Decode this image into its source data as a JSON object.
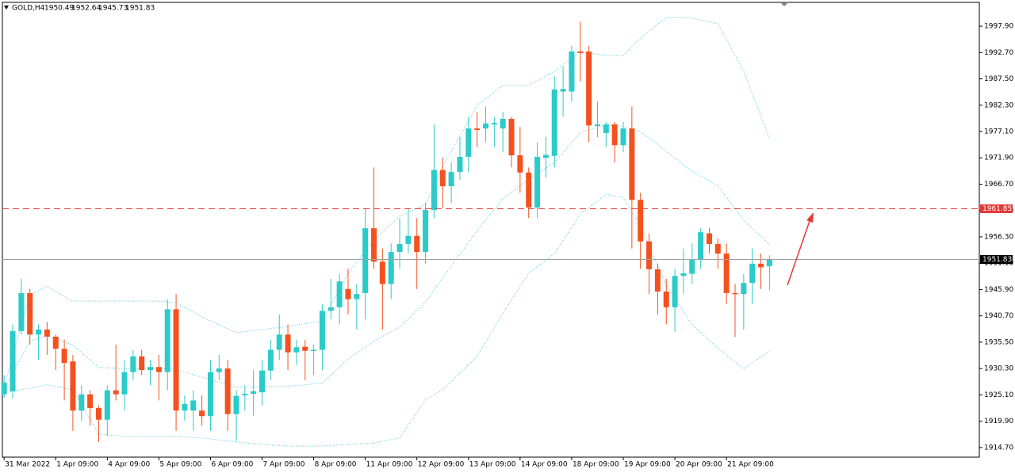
{
  "chart_data": {
    "type": "candlestick",
    "symbol": "GOLD,H4",
    "last_ohlc": [
      1950.49,
      1952.64,
      1945.73,
      1951.83
    ],
    "open": [
      1925.2,
      1925.8,
      1937.7,
      1945.2,
      1937,
      1938,
      1936.6,
      1934.2,
      1931.7,
      1922,
      1925.2,
      1922.5,
      1920.2,
      1926,
      1925.2,
      1929.6,
      1932.7,
      1930,
      1930.6,
      1929.6,
      1942,
      1922,
      1922,
      1922,
      1920.9,
      1929.6,
      1930.3,
      1921.3,
      1925,
      1925.3,
      1925.6,
      1929.9,
      1934,
      1937,
      1933.5,
      1934.6,
      1933.8,
      1934,
      1941.7,
      1942.4,
      1946,
      1944,
      1945.2,
      1958,
      1951.4,
      1947,
      1953.3,
      1954.9,
      1956.5,
      1953.3,
      1961.6,
      1969.5,
      1966.3,
      1969.1,
      1972.1,
      1977.7,
      1977.7,
      1978.5,
      1977.7,
      1979.6,
      1972.4,
      1969,
      1962.1,
      1971.9,
      1972.3,
      1985,
      1985,
      1992.9,
      1992.9,
      1978.2,
      1976.8,
      1978.5,
      1974.4,
      1977.7,
      1963.6,
      1955.4,
      1949.9,
      1945.5,
      1942.4,
      1948.6,
      1949,
      1951.9,
      1957,
      1954.9,
      1953,
      1945.2,
      1945,
      1947.2,
      1951,
      1950.49
    ],
    "high": [
      1929,
      1939,
      1948,
      1946,
      1939,
      1939.5,
      1937,
      1936,
      1933,
      1927,
      1926,
      1923,
      1927,
      1935,
      1932,
      1934,
      1934,
      1932,
      1933,
      1944,
      1945,
      1925,
      1926,
      1925,
      1932,
      1933,
      1932,
      1926,
      1927,
      1930,
      1932,
      1936,
      1941,
      1939,
      1936,
      1936,
      1935,
      1943,
      1948,
      1949,
      1950,
      1947,
      1962,
      1970,
      1954,
      1955,
      1960,
      1962,
      1960,
      1963,
      1978.5,
      1972,
      1971,
      1976,
      1980,
      1981,
      1982,
      1980,
      1981,
      1980,
      1978,
      1970,
      1975,
      1976,
      1988,
      1990,
      1994,
      1998.8,
      1994,
      1983,
      1979,
      1979,
      1979,
      1982,
      1965,
      1957,
      1951,
      1948,
      1950,
      1954,
      1955,
      1958,
      1958,
      1956,
      1955,
      1947,
      1949,
      1954,
      1953,
      1952.64
    ],
    "low": [
      1924.5,
      1924.5,
      1937,
      1935,
      1932,
      1933,
      1930,
      1924,
      1918,
      1920,
      1919,
      1915.8,
      1917,
      1924,
      1922,
      1928,
      1929,
      1927,
      1924,
      1926,
      1918,
      1920,
      1918,
      1919,
      1918,
      1928,
      1918,
      1916,
      1922,
      1921,
      1923,
      1928,
      1932,
      1930,
      1931,
      1928,
      1929,
      1930,
      1940,
      1939,
      1941,
      1938,
      1940,
      1950,
      1938,
      1944,
      1950,
      1953,
      1946,
      1951,
      1960,
      1962,
      1963,
      1967.5,
      1969,
      1974,
      1975,
      1974,
      1973,
      1970,
      1965,
      1960,
      1960,
      1968,
      1970,
      1980,
      1983,
      1987,
      1975,
      1976,
      1974,
      1971,
      1973,
      1954,
      1950,
      1945,
      1941,
      1939,
      1937.5,
      1945,
      1947,
      1950,
      1953,
      1950,
      1943,
      1936.5,
      1938,
      1943,
      1946,
      1945.73
    ],
    "close": [
      1927.5,
      1937.7,
      1945.2,
      1937,
      1938,
      1936.6,
      1934.2,
      1931.4,
      1922,
      1925.2,
      1922.5,
      1920.2,
      1926,
      1925.2,
      1929.6,
      1932.7,
      1930,
      1930.6,
      1929.6,
      1942,
      1922,
      1923.3,
      1924,
      1920.9,
      1929.6,
      1930.3,
      1921.3,
      1924.9,
      1925.3,
      1925.8,
      1929.9,
      1934,
      1937,
      1933.5,
      1934.5,
      1933.8,
      1934,
      1941.7,
      1942.4,
      1947.5,
      1944,
      1945,
      1958,
      1951.4,
      1947,
      1953.3,
      1954.9,
      1956.5,
      1953.3,
      1961.6,
      1969.5,
      1966.3,
      1969.1,
      1972.1,
      1977.7,
      1977.4,
      1978.7,
      1978.8,
      1979.6,
      1972.4,
      1969,
      1962.1,
      1972.1,
      1972.5,
      1985.4,
      1985.5,
      1992.9,
      1992.6,
      1978.3,
      1978.5,
      1978.5,
      1974.4,
      1977.7,
      1963.6,
      1955.4,
      1949.9,
      1945.5,
      1942.4,
      1948.6,
      1949.1,
      1951.9,
      1957.2,
      1954.9,
      1953,
      1945.2,
      1945,
      1947.2,
      1951,
      1950.3,
      1951.83
    ],
    "up_color": "#2bcbc9",
    "down_color": "#f4511e",
    "bands": [
      {
        "color": "#4fc3d8",
        "x": [
          0,
          3,
          5,
          8,
          11,
          14,
          18,
          20,
          23,
          27,
          30,
          33,
          37,
          40,
          43,
          46,
          49,
          51,
          55,
          58,
          61,
          64,
          67,
          70,
          72,
          74,
          77,
          80,
          83,
          86,
          89
        ],
        "values": [
          1926.7,
          1944.9,
          1946.5,
          1943.6,
          1943.6,
          1943.6,
          1943.6,
          1943.3,
          1940.5,
          1937.4,
          1938,
          1938.6,
          1939.7,
          1949.1,
          1955.7,
          1960.4,
          1962.7,
          1970.2,
          1982.3,
          1986.2,
          1986.2,
          1989,
          1992.9,
          1992.1,
          1992.1,
          1995.6,
          1999.6,
          1999.5,
          1998.4,
          1989,
          1975.7
        ]
      },
      {
        "color": "#4fc3d8",
        "x": [
          0,
          3,
          5,
          8,
          11,
          14,
          18,
          20,
          23,
          27,
          30,
          33,
          37,
          40,
          43,
          46,
          49,
          51,
          55,
          58,
          61,
          64,
          67,
          70,
          72,
          74,
          77,
          80,
          83,
          86,
          89
        ],
        "values": [
          1926.2,
          1935.7,
          1936.8,
          1934.9,
          1930.5,
          1930.3,
          1930.3,
          1930.1,
          1928.6,
          1926.6,
          1926.7,
          1926.8,
          1927.4,
          1932.2,
          1935.7,
          1938.5,
          1943.4,
          1948.2,
          1957.5,
          1963.8,
          1967.7,
          1971,
          1976.9,
          1978.4,
          1978.1,
          1977.1,
          1973.2,
          1969.2,
          1966.4,
          1959.6,
          1954.8
        ]
      },
      {
        "color": "#4fc3d8",
        "x": [
          0,
          3,
          5,
          8,
          11,
          14,
          18,
          20,
          23,
          27,
          30,
          33,
          37,
          40,
          43,
          46,
          49,
          51,
          55,
          58,
          61,
          64,
          67,
          70,
          72,
          74,
          77,
          80,
          83,
          86,
          89
        ],
        "values": [
          1925.6,
          1926.4,
          1927.1,
          1926.1,
          1917.4,
          1916.9,
          1916.9,
          1916.9,
          1916.6,
          1915.8,
          1915.3,
          1915,
          1915,
          1915.3,
          1915.6,
          1916.6,
          1924.1,
          1926.1,
          1932.7,
          1941.3,
          1949.1,
          1953,
          1960.8,
          1964.7,
          1964,
          1958.5,
          1946.8,
          1938.9,
          1934.3,
          1930.2,
          1933.8
        ]
      }
    ],
    "levels": [
      {
        "value": 1961.85,
        "color": "#e53935",
        "dashed": true,
        "label_color": "#e53935"
      },
      {
        "value": 1951.83,
        "color": "#a0a0a0",
        "dashed": false,
        "label_color": "#000000"
      }
    ],
    "xlim": [
      -0.2,
      113.4
    ],
    "ylim": [
      1912.8,
      2002.6
    ],
    "xticks": [
      {
        "value": 0,
        "label": "31 Mar 2022"
      },
      {
        "value": 6,
        "label": "1 Apr 09:00"
      },
      {
        "value": 12,
        "label": "4 Apr 09:00"
      },
      {
        "value": 18,
        "label": "5 Apr 09:00"
      },
      {
        "value": 24,
        "label": "6 Apr 09:00"
      },
      {
        "value": 30,
        "label": "7 Apr 09:00"
      },
      {
        "value": 36,
        "label": "8 Apr 09:00"
      },
      {
        "value": 42,
        "label": "11 Apr 09:00"
      },
      {
        "value": 48,
        "label": "12 Apr 09:00"
      },
      {
        "value": 54,
        "label": "13 Apr 09:00"
      },
      {
        "value": 60,
        "label": "14 Apr 09:00"
      },
      {
        "value": 66,
        "label": "18 Apr 09:00"
      },
      {
        "value": 72,
        "label": "19 Apr 09:00"
      },
      {
        "value": 78,
        "label": "20 Apr 09:00"
      },
      {
        "value": 84,
        "label": "21 Apr 09:00"
      }
    ],
    "yticks": [
      {
        "value": 1997.9,
        "label": "1997.90"
      },
      {
        "value": 1992.7,
        "label": "1992.70"
      },
      {
        "value": 1987.5,
        "label": "1987.50"
      },
      {
        "value": 1982.3,
        "label": "1982.30"
      },
      {
        "value": 1977.1,
        "label": "1977.10"
      },
      {
        "value": 1971.9,
        "label": "1971.90"
      },
      {
        "value": 1966.7,
        "label": "1966.70"
      },
      {
        "value": 1961.5,
        "label": "1961.50"
      },
      {
        "value": 1956.3,
        "label": "1956.30"
      },
      {
        "value": 1951.1,
        "label": "1951.10"
      },
      {
        "value": 1945.9,
        "label": "1945.90"
      },
      {
        "value": 1940.7,
        "label": "1940.70"
      },
      {
        "value": 1935.5,
        "label": "1935.50"
      },
      {
        "value": 1930.3,
        "label": "1930.30"
      },
      {
        "value": 1925.1,
        "label": "1925.10"
      },
      {
        "value": 1919.9,
        "label": "1919.90"
      },
      {
        "value": 1914.7,
        "label": "1914.70"
      }
    ]
  }
}
